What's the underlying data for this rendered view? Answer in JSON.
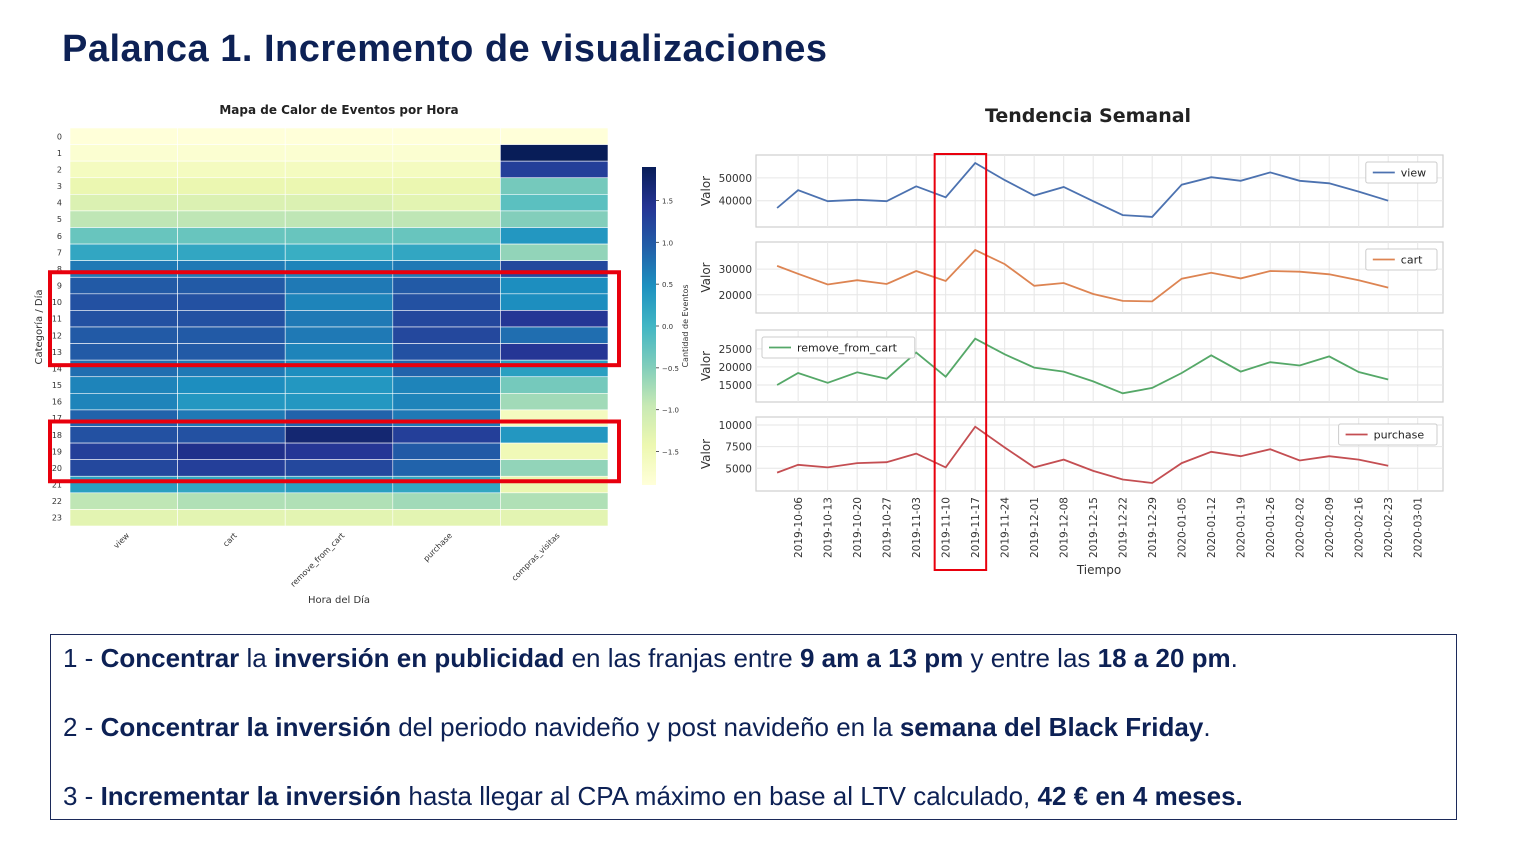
{
  "slide": {
    "title": "Palanca 1. Incremento de visualizaciones"
  },
  "chart_data": [
    {
      "type": "heatmap",
      "title": "Mapa de Calor de Eventos por Hora",
      "xlabel": "Hora del Día",
      "ylabel": "Categoría / Día",
      "colorbar_label": "Cantidad de Eventos",
      "colormap": "YlGnBu",
      "columns": [
        "view",
        "cart",
        "remove_from_cart",
        "purchase",
        "compras_visitas"
      ],
      "rows": [
        "0",
        "1",
        "2",
        "3",
        "4",
        "5",
        "6",
        "7",
        "8",
        "9",
        "10",
        "11",
        "12",
        "13",
        "14",
        "15",
        "16",
        "17",
        "18",
        "19",
        "20",
        "21",
        "22",
        "23"
      ],
      "values": [
        [
          -1.9,
          -1.9,
          -1.9,
          -1.9,
          -1.9
        ],
        [
          -1.8,
          -1.8,
          -1.8,
          -1.8,
          1.9
        ],
        [
          -1.6,
          -1.6,
          -1.6,
          -1.6,
          1.3
        ],
        [
          -1.4,
          -1.4,
          -1.4,
          -1.4,
          -0.4
        ],
        [
          -1.2,
          -1.2,
          -1.2,
          -1.3,
          -0.2
        ],
        [
          -0.9,
          -0.9,
          -0.9,
          -0.9,
          -0.5
        ],
        [
          -0.3,
          -0.3,
          -0.3,
          -0.3,
          0.4
        ],
        [
          0.2,
          0.2,
          0.1,
          0.2,
          -0.6
        ],
        [
          0.7,
          0.7,
          0.6,
          0.7,
          1.2
        ],
        [
          1.0,
          1.0,
          0.7,
          1.0,
          0.5
        ],
        [
          1.1,
          1.1,
          0.6,
          1.1,
          0.5
        ],
        [
          1.1,
          1.1,
          0.7,
          1.2,
          1.4
        ],
        [
          1.0,
          1.0,
          0.7,
          1.2,
          0.8
        ],
        [
          1.0,
          1.0,
          0.6,
          1.1,
          1.4
        ],
        [
          0.8,
          0.7,
          0.5,
          0.9,
          0.3
        ],
        [
          0.6,
          0.5,
          0.4,
          0.6,
          -0.4
        ],
        [
          0.6,
          0.4,
          0.4,
          0.6,
          -0.7
        ],
        [
          0.9,
          0.7,
          0.9,
          0.7,
          -1.6
        ],
        [
          1.1,
          1.1,
          1.7,
          1.3,
          0.4
        ],
        [
          1.3,
          1.5,
          1.4,
          1.0,
          -1.5
        ],
        [
          1.2,
          1.3,
          1.2,
          0.9,
          -0.6
        ],
        [
          0.3,
          0.2,
          0.3,
          0.2,
          -1.4
        ],
        [
          -0.9,
          -0.8,
          -0.8,
          -0.7,
          -0.8
        ],
        [
          -1.3,
          -1.3,
          -1.3,
          -1.3,
          -1.3
        ]
      ],
      "colorbar_ticks": [
        1.5,
        1.0,
        0.5,
        0.0,
        -0.5,
        -1.0,
        -1.5
      ],
      "vmin": -1.9,
      "vmax": 1.9,
      "highlight_rows": [
        [
          9,
          13
        ],
        [
          18,
          20
        ]
      ]
    },
    {
      "type": "line",
      "title": "Tendencia Semanal",
      "xlabel": "Tiempo",
      "ylabel": "Valor",
      "x": [
        "2019-10-06",
        "2019-10-13",
        "2019-10-20",
        "2019-10-27",
        "2019-11-03",
        "2019-11-10",
        "2019-11-17",
        "2019-11-24",
        "2019-12-01",
        "2019-12-08",
        "2019-12-15",
        "2019-12-22",
        "2019-12-29",
        "2020-01-05",
        "2020-01-12",
        "2020-01-19",
        "2020-01-26",
        "2020-02-02",
        "2020-02-09",
        "2020-02-16",
        "2020-02-23",
        "2020-03-01"
      ],
      "grid": true,
      "highlight_x": [
        "2019-11-10",
        "2019-11-17"
      ],
      "series": [
        {
          "name": "view",
          "color": "#4c72b0",
          "legend": "top-right",
          "ylim": [
            32000,
            56500
          ],
          "yticks": [
            40000,
            50000
          ],
          "tick_labels": [
            "40000",
            "50000"
          ],
          "points": [
            [
              "2019-10-01",
              36800
            ],
            [
              "2019-10-06",
              44600
            ],
            [
              "2019-10-13",
              39800
            ],
            [
              "2019-10-20",
              40400
            ],
            [
              "2019-10-27",
              39800
            ],
            [
              "2019-11-03",
              46300
            ],
            [
              "2019-11-10",
              41500
            ],
            [
              "2019-11-17",
              56500
            ],
            [
              "2019-11-24",
              49000
            ],
            [
              "2019-12-01",
              42300
            ],
            [
              "2019-12-08",
              46000
            ],
            [
              "2019-12-15",
              39800
            ],
            [
              "2019-12-22",
              33700
            ],
            [
              "2019-12-29",
              32900
            ],
            [
              "2020-01-05",
              47000
            ],
            [
              "2020-01-12",
              50300
            ],
            [
              "2020-01-19",
              48700
            ],
            [
              "2020-01-26",
              52400
            ],
            [
              "2020-02-02",
              48700
            ],
            [
              "2020-02-09",
              47600
            ],
            [
              "2020-02-16",
              44000
            ],
            [
              "2020-02-23",
              40000
            ]
          ]
        },
        {
          "name": "cart",
          "color": "#dd8452",
          "legend": "top-right",
          "ylim": [
            16000,
            37500
          ],
          "yticks": [
            20000,
            30000
          ],
          "tick_labels": [
            "20000",
            "30000"
          ],
          "points": [
            [
              "2019-10-01",
              31300
            ],
            [
              "2019-10-06",
              28200
            ],
            [
              "2019-10-13",
              24000
            ],
            [
              "2019-10-20",
              25700
            ],
            [
              "2019-10-27",
              24200
            ],
            [
              "2019-11-03",
              29300
            ],
            [
              "2019-11-10",
              25400
            ],
            [
              "2019-11-17",
              37500
            ],
            [
              "2019-11-24",
              32000
            ],
            [
              "2019-12-01",
              23500
            ],
            [
              "2019-12-08",
              24600
            ],
            [
              "2019-12-15",
              20300
            ],
            [
              "2019-12-22",
              17600
            ],
            [
              "2019-12-29",
              17400
            ],
            [
              "2020-01-05",
              26300
            ],
            [
              "2020-01-12",
              28600
            ],
            [
              "2020-01-19",
              26400
            ],
            [
              "2020-01-26",
              29300
            ],
            [
              "2020-02-02",
              29000
            ],
            [
              "2020-02-09",
              28000
            ],
            [
              "2020-02-16",
              25700
            ],
            [
              "2020-02-23",
              22800
            ]
          ]
        },
        {
          "name": "remove_from_cart",
          "color": "#55a868",
          "legend": "top-left",
          "ylim": [
            12500,
            28000
          ],
          "yticks": [
            15000,
            20000,
            25000
          ],
          "tick_labels": [
            "15000",
            "20000",
            "25000"
          ],
          "points": [
            [
              "2019-10-01",
              15000
            ],
            [
              "2019-10-06",
              18300
            ],
            [
              "2019-10-13",
              15600
            ],
            [
              "2019-10-20",
              18500
            ],
            [
              "2019-10-27",
              16700
            ],
            [
              "2019-11-03",
              24000
            ],
            [
              "2019-11-10",
              17300
            ],
            [
              "2019-11-17",
              27800
            ],
            [
              "2019-11-24",
              23500
            ],
            [
              "2019-12-01",
              19800
            ],
            [
              "2019-12-08",
              18700
            ],
            [
              "2019-12-15",
              16000
            ],
            [
              "2019-12-22",
              12700
            ],
            [
              "2019-12-29",
              14200
            ],
            [
              "2020-01-05",
              18300
            ],
            [
              "2020-01-12",
              23200
            ],
            [
              "2020-01-19",
              18700
            ],
            [
              "2020-01-26",
              21300
            ],
            [
              "2020-02-02",
              20400
            ],
            [
              "2020-02-09",
              22900
            ],
            [
              "2020-02-16",
              18600
            ],
            [
              "2020-02-23",
              16500
            ]
          ]
        },
        {
          "name": "purchase",
          "color": "#c44e52",
          "legend": "top-right",
          "ylim": [
            3300,
            10000
          ],
          "yticks": [
            5000,
            7500,
            10000
          ],
          "tick_labels": [
            "5000",
            "7500",
            "10000"
          ],
          "points": [
            [
              "2019-10-01",
              4500
            ],
            [
              "2019-10-06",
              5400
            ],
            [
              "2019-10-13",
              5100
            ],
            [
              "2019-10-20",
              5600
            ],
            [
              "2019-10-27",
              5700
            ],
            [
              "2019-11-03",
              6700
            ],
            [
              "2019-11-10",
              5100
            ],
            [
              "2019-11-17",
              9800
            ],
            [
              "2019-11-24",
              7400
            ],
            [
              "2019-12-01",
              5100
            ],
            [
              "2019-12-08",
              6000
            ],
            [
              "2019-12-15",
              4700
            ],
            [
              "2019-12-22",
              3700
            ],
            [
              "2019-12-29",
              3300
            ],
            [
              "2020-01-05",
              5600
            ],
            [
              "2020-01-12",
              6900
            ],
            [
              "2020-01-19",
              6400
            ],
            [
              "2020-01-26",
              7200
            ],
            [
              "2020-02-02",
              5900
            ],
            [
              "2020-02-09",
              6400
            ],
            [
              "2020-02-16",
              6000
            ],
            [
              "2020-02-23",
              5300
            ]
          ]
        }
      ]
    }
  ],
  "notes": [
    {
      "num": "1 - ",
      "parts": [
        {
          "t": "Concentrar",
          "b": true
        },
        {
          "t": " la ",
          "b": false
        },
        {
          "t": "inversión en publicidad",
          "b": true
        },
        {
          "t": " en las franjas entre ",
          "b": false
        },
        {
          "t": "9 am a 13 pm",
          "b": true
        },
        {
          "t": " y entre las ",
          "b": false
        },
        {
          "t": "18 a 20 pm",
          "b": true
        },
        {
          "t": ".",
          "b": false
        }
      ]
    },
    {
      "num": "2 - ",
      "parts": [
        {
          "t": "Concentrar la inversión",
          "b": true
        },
        {
          "t": " del periodo navideño y post navideño en la ",
          "b": false
        },
        {
          "t": "semana del Black Friday",
          "b": true
        },
        {
          "t": ".",
          "b": false
        }
      ]
    },
    {
      "num": "3 - ",
      "parts": [
        {
          "t": "Incrementar la inversión",
          "b": true
        },
        {
          "t": " hasta llegar al CPA máximo en base al LTV calculado, ",
          "b": false
        },
        {
          "t": "42 € en 4 meses.",
          "b": true
        }
      ]
    }
  ]
}
